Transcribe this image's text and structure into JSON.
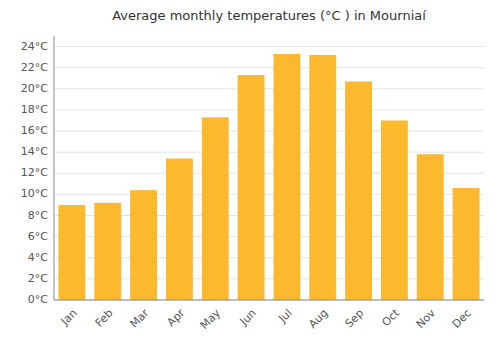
{
  "chart_data": {
    "type": "bar",
    "title": "Average monthly temperatures (°C ) in Mourniaí",
    "categories": [
      "Jan",
      "Feb",
      "Mar",
      "Apr",
      "May",
      "Jun",
      "Jul",
      "Aug",
      "Sep",
      "Oct",
      "Nov",
      "Dec"
    ],
    "values": [
      9.0,
      9.2,
      10.4,
      13.4,
      17.3,
      21.3,
      23.3,
      23.2,
      20.7,
      17.0,
      13.8,
      10.6
    ],
    "color": "#FDB92E",
    "ylim": [
      0,
      25
    ],
    "yticks": [
      {
        "value": 0,
        "label": "0°C"
      },
      {
        "value": 2,
        "label": "2°C"
      },
      {
        "value": 4,
        "label": "4°C"
      },
      {
        "value": 6,
        "label": "6°C"
      },
      {
        "value": 8,
        "label": "8°C"
      },
      {
        "value": 10,
        "label": "10°C"
      },
      {
        "value": 12,
        "label": "12°C"
      },
      {
        "value": 14,
        "label": "14°C"
      },
      {
        "value": 16,
        "label": "16°C"
      },
      {
        "value": 18,
        "label": "18°C"
      },
      {
        "value": 20,
        "label": "20°C"
      },
      {
        "value": 22,
        "label": "22°C"
      },
      {
        "value": 24,
        "label": "24°C"
      }
    ],
    "grid": true
  }
}
